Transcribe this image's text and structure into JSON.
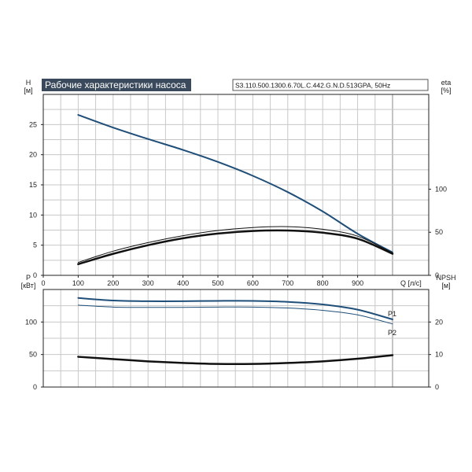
{
  "title": "Рабочие характеристики насоса",
  "model": "S3.110.500.1300.6.70L.C.442.G.N.D.513GPA, 50Hz",
  "colors": {
    "blue": "#1f4e79",
    "black": "#111111",
    "title_bg": "#3a4a5c",
    "grid": "#c8c8c8"
  },
  "chart_data": [
    {
      "type": "line",
      "panel": "top",
      "xlabel": "Q [л/с]",
      "ylabel_left": [
        "H",
        "[м]"
      ],
      "ylabel_right": [
        "eta",
        "[%]"
      ],
      "xlim": [
        0,
        1000
      ],
      "ylim_left": [
        0,
        30
      ],
      "ylim_right": [
        0,
        210
      ],
      "x_ticks": [
        0,
        100,
        200,
        300,
        400,
        500,
        600,
        700,
        800,
        900
      ],
      "y_ticks_left": [
        0,
        5,
        10,
        15,
        20,
        25
      ],
      "y_ticks_right": [
        0,
        50,
        100
      ],
      "grid": true,
      "series": [
        {
          "id": "H",
          "axis": "left",
          "color": "#1f4e79",
          "width": 2,
          "x": [
            100,
            200,
            300,
            400,
            500,
            600,
            700,
            800,
            900,
            1000
          ],
          "y": [
            26.6,
            24.5,
            22.6,
            20.8,
            18.8,
            16.5,
            13.8,
            10.6,
            6.9,
            3.8
          ]
        },
        {
          "id": "eta-1",
          "axis": "right",
          "color": "#111111",
          "width": 2.5,
          "x": [
            100,
            200,
            300,
            400,
            500,
            600,
            700,
            800,
            900,
            1000
          ],
          "y": [
            13,
            25,
            35,
            43,
            48.5,
            51.5,
            52,
            49.5,
            42.5,
            25
          ]
        },
        {
          "id": "eta-2",
          "axis": "right",
          "color": "#111111",
          "width": 1,
          "x": [
            100,
            200,
            300,
            400,
            500,
            600,
            700,
            800,
            900,
            1000
          ],
          "y": [
            15,
            28,
            38,
            46,
            52,
            55.5,
            56.5,
            53.5,
            45.5,
            26
          ]
        }
      ]
    },
    {
      "type": "line",
      "panel": "bottom",
      "ylabel_left": [
        "P",
        "[кВт]"
      ],
      "ylabel_right": [
        "NPSH",
        "[м]"
      ],
      "xlim": [
        0,
        1000
      ],
      "ylim_left": [
        0,
        150
      ],
      "ylim_right": [
        0,
        30
      ],
      "x_ticks": [
        0,
        100,
        200,
        300,
        400,
        500,
        600,
        700,
        800,
        900
      ],
      "y_ticks_left": [
        0,
        50,
        100
      ],
      "y_ticks_right": [
        0,
        10,
        20
      ],
      "grid": true,
      "series": [
        {
          "id": "P1",
          "name": "P1",
          "axis": "left",
          "color": "#1f4e79",
          "width": 2,
          "x": [
            100,
            200,
            300,
            400,
            500,
            600,
            700,
            800,
            900,
            1000
          ],
          "y": [
            137,
            133,
            132,
            132,
            132.5,
            132.5,
            131,
            127,
            119,
            104
          ]
        },
        {
          "id": "P2",
          "name": "P2",
          "axis": "left",
          "color": "#1f4e79",
          "width": 1,
          "x": [
            100,
            200,
            300,
            400,
            500,
            600,
            700,
            800,
            900,
            1000
          ],
          "y": [
            126,
            123,
            122.5,
            122.5,
            123,
            123,
            121.5,
            118,
            111,
            97
          ]
        },
        {
          "id": "NPSH",
          "axis": "right",
          "color": "#111111",
          "width": 2.5,
          "x": [
            100,
            200,
            300,
            400,
            500,
            600,
            700,
            800,
            900,
            1000
          ],
          "y": [
            9.3,
            8.6,
            7.9,
            7.4,
            7.1,
            7.1,
            7.4,
            7.9,
            8.7,
            9.8
          ]
        }
      ]
    }
  ]
}
